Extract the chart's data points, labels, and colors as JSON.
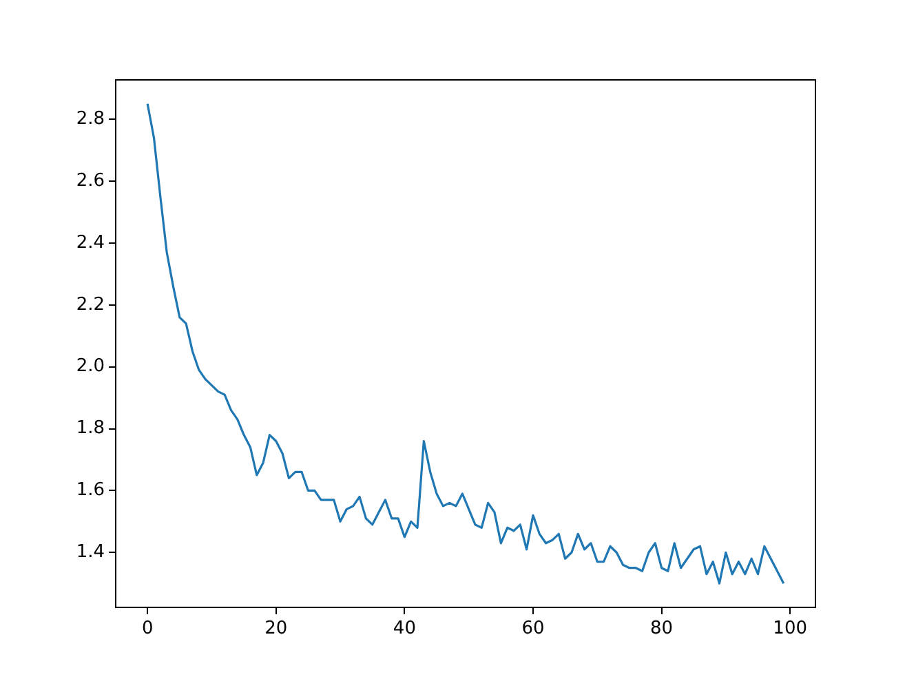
{
  "chart_data": {
    "type": "line",
    "x": [
      0,
      1,
      2,
      3,
      4,
      5,
      6,
      7,
      8,
      9,
      10,
      11,
      12,
      13,
      14,
      15,
      16,
      17,
      18,
      19,
      20,
      21,
      22,
      23,
      24,
      25,
      26,
      27,
      28,
      29,
      30,
      31,
      32,
      33,
      34,
      35,
      36,
      37,
      38,
      39,
      40,
      41,
      42,
      43,
      44,
      45,
      46,
      47,
      48,
      49,
      50,
      51,
      52,
      53,
      54,
      55,
      56,
      57,
      58,
      59,
      60,
      61,
      62,
      63,
      64,
      65,
      66,
      67,
      68,
      69,
      70,
      71,
      72,
      73,
      74,
      75,
      76,
      77,
      78,
      79,
      80,
      81,
      82,
      83,
      84,
      85,
      86,
      87,
      88,
      89,
      90,
      91,
      92,
      93,
      94,
      95,
      96,
      97,
      98,
      99
    ],
    "series": [
      {
        "color": "#1f77b4",
        "values": [
          2.85,
          2.74,
          2.55,
          2.37,
          2.26,
          2.16,
          2.14,
          2.05,
          1.99,
          1.96,
          1.94,
          1.92,
          1.91,
          1.86,
          1.83,
          1.78,
          1.74,
          1.65,
          1.69,
          1.78,
          1.76,
          1.72,
          1.64,
          1.66,
          1.66,
          1.6,
          1.6,
          1.57,
          1.57,
          1.57,
          1.5,
          1.54,
          1.55,
          1.58,
          1.51,
          1.49,
          1.53,
          1.57,
          1.51,
          1.51,
          1.45,
          1.5,
          1.48,
          1.76,
          1.66,
          1.59,
          1.55,
          1.56,
          1.55,
          1.59,
          1.54,
          1.49,
          1.48,
          1.56,
          1.53,
          1.43,
          1.48,
          1.47,
          1.49,
          1.41,
          1.52,
          1.46,
          1.43,
          1.44,
          1.46,
          1.38,
          1.4,
          1.46,
          1.41,
          1.43,
          1.37,
          1.37,
          1.42,
          1.4,
          1.36,
          1.35,
          1.35,
          1.34,
          1.4,
          1.43,
          1.35,
          1.34,
          1.43,
          1.35,
          1.38,
          1.41,
          1.42,
          1.33,
          1.37,
          1.3,
          1.4,
          1.33,
          1.37,
          1.33,
          1.38,
          1.33,
          1.42,
          1.38,
          1.34,
          1.3
        ]
      }
    ],
    "xlim": [
      -4.95,
      103.95
    ],
    "ylim": [
      1.2225,
      2.9275
    ],
    "xticks": [
      0,
      20,
      40,
      60,
      80,
      100
    ],
    "yticks": [
      1.4,
      1.6,
      1.8,
      {
        "value": 2,
        "label": "2.0"
      },
      2.2,
      2.4,
      2.6,
      2.8
    ],
    "grid": false,
    "legend": false,
    "marker": "none",
    "line_style": "solid"
  }
}
